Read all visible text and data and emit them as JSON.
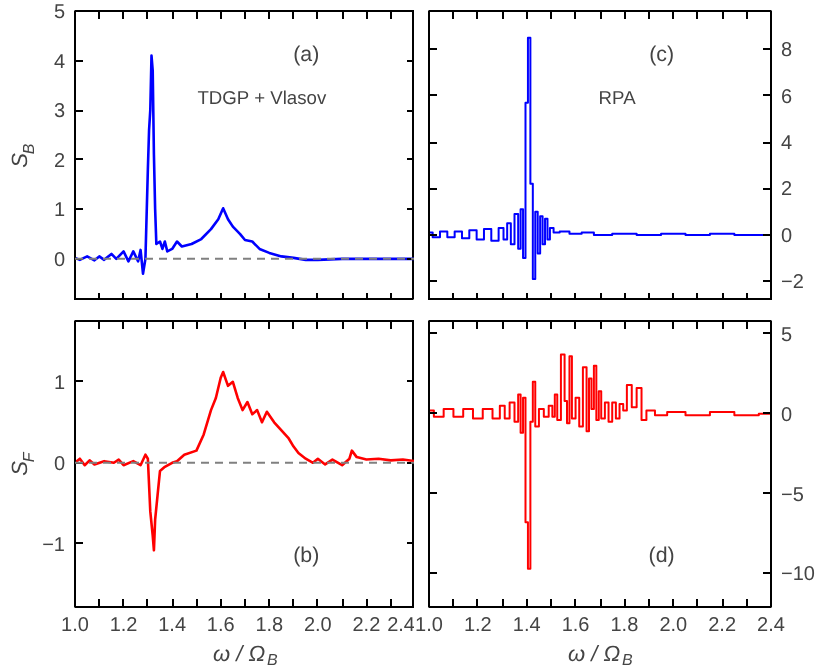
{
  "chart_data": [
    {
      "type": "line",
      "ylabel": "S$_{B}$",
      "annotations": [
        "(a)",
        "TDGP + Vlasov"
      ],
      "tick_labels": "y",
      "grid": false,
      "xlim": [
        1.0,
        2.4
      ],
      "ylim": [
        -0.85,
        5.0
      ],
      "xticks": [
        1.0,
        1.1,
        1.2,
        1.3,
        1.4,
        1.5,
        1.6,
        1.7,
        1.8,
        1.9,
        2.0,
        2.1,
        2.2,
        2.3,
        2.4
      ],
      "yticks": [
        0,
        1,
        2,
        3,
        4,
        5
      ],
      "ref_lines": [
        {
          "axis": "y",
          "value": 0,
          "color": "#808080",
          "line_style": "dashed"
        }
      ],
      "series": [
        {
          "color": "#0000ff",
          "x": [
            1.0,
            1.02,
            1.05,
            1.08,
            1.1,
            1.12,
            1.15,
            1.17,
            1.2,
            1.22,
            1.24,
            1.26,
            1.27,
            1.28,
            1.29,
            1.3,
            1.305,
            1.31,
            1.315,
            1.32,
            1.325,
            1.33,
            1.335,
            1.35,
            1.36,
            1.37,
            1.38,
            1.4,
            1.42,
            1.44,
            1.48,
            1.52,
            1.56,
            1.59,
            1.61,
            1.63,
            1.65,
            1.68,
            1.7,
            1.73,
            1.76,
            1.8,
            1.85,
            1.9,
            1.95,
            2.0,
            2.1,
            2.2,
            2.4
          ],
          "values": [
            0.02,
            -0.02,
            0.05,
            -0.03,
            0.05,
            -0.02,
            0.1,
            0.0,
            0.15,
            -0.05,
            0.15,
            -0.05,
            0.18,
            -0.3,
            0.0,
            1.8,
            2.6,
            3.0,
            4.1,
            3.8,
            2.1,
            1.0,
            0.3,
            0.35,
            0.2,
            0.35,
            0.15,
            0.2,
            0.35,
            0.25,
            0.3,
            0.4,
            0.6,
            0.8,
            1.02,
            0.8,
            0.65,
            0.5,
            0.38,
            0.35,
            0.2,
            0.12,
            0.05,
            0.02,
            -0.02,
            -0.02,
            0.0,
            0.0,
            0.0
          ]
        }
      ]
    },
    {
      "type": "line",
      "ylabel": "S$_{F}$",
      "xlabel": "ω / Ω$_{B}$",
      "annotations": [
        "(b)"
      ],
      "grid": false,
      "xlim": [
        1.0,
        2.4
      ],
      "ylim": [
        -1.78,
        1.75
      ],
      "xticks": [
        {
          "value": 1.0,
          "label": "1.0"
        },
        {
          "value": 1.1,
          "label": null
        },
        {
          "value": 1.2,
          "label": "1.2"
        },
        {
          "value": 1.3,
          "label": null
        },
        {
          "value": 1.4,
          "label": "1.4"
        },
        {
          "value": 1.5,
          "label": null
        },
        {
          "value": 1.6,
          "label": "1.6"
        },
        {
          "value": 1.7,
          "label": null
        },
        {
          "value": 1.8,
          "label": "1.8"
        },
        {
          "value": 1.9,
          "label": null
        },
        {
          "value": 2.0,
          "label": "2.0"
        },
        {
          "value": 2.1,
          "label": null
        },
        {
          "value": 2.2,
          "label": "2.2"
        },
        {
          "value": 2.3,
          "label": null
        },
        {
          "value": 2.4,
          "label": "2.4"
        }
      ],
      "yticks": [
        {
          "value": -1,
          "label": "−1"
        },
        0,
        1
      ],
      "ref_lines": [
        {
          "axis": "y",
          "value": 0,
          "color": "#808080",
          "line_style": "dashed"
        }
      ],
      "series": [
        {
          "color": "#ff0000",
          "x": [
            1.0,
            1.02,
            1.04,
            1.06,
            1.08,
            1.12,
            1.16,
            1.18,
            1.2,
            1.24,
            1.27,
            1.29,
            1.3,
            1.31,
            1.32,
            1.325,
            1.33,
            1.34,
            1.35,
            1.37,
            1.4,
            1.42,
            1.45,
            1.5,
            1.53,
            1.56,
            1.58,
            1.6,
            1.61,
            1.63,
            1.65,
            1.67,
            1.69,
            1.71,
            1.73,
            1.75,
            1.77,
            1.79,
            1.82,
            1.85,
            1.88,
            1.9,
            1.92,
            1.95,
            1.98,
            2.0,
            2.03,
            2.06,
            2.1,
            2.13,
            2.14,
            2.16,
            2.2,
            2.25,
            2.3,
            2.35,
            2.4
          ],
          "values": [
            0.0,
            0.05,
            -0.03,
            0.03,
            -0.02,
            0.02,
            0.0,
            0.04,
            -0.03,
            0.02,
            -0.03,
            0.1,
            0.05,
            -0.6,
            -0.9,
            -1.08,
            -0.7,
            -0.4,
            -0.1,
            -0.05,
            0.0,
            0.02,
            0.1,
            0.15,
            0.35,
            0.65,
            0.8,
            1.05,
            1.12,
            0.95,
            1.0,
            0.8,
            0.65,
            0.75,
            0.6,
            0.65,
            0.5,
            0.63,
            0.5,
            0.4,
            0.3,
            0.2,
            0.12,
            0.05,
            0.0,
            0.05,
            -0.02,
            0.04,
            -0.03,
            0.05,
            0.15,
            0.07,
            0.04,
            0.05,
            0.03,
            0.04,
            0.02
          ]
        }
      ]
    },
    {
      "type": "step",
      "annotations": [
        "(c)",
        "RPA"
      ],
      "tick_labels": "y",
      "grid": false,
      "xlim": [
        1.0,
        2.4
      ],
      "y2lim": [
        -2.85,
        9.65
      ],
      "xticks": [
        1.0,
        1.1,
        1.2,
        1.3,
        1.4,
        1.5,
        1.6,
        1.7,
        1.8,
        1.9,
        2.0,
        2.1,
        2.2,
        2.3,
        2.4
      ],
      "y2ticks": [
        {
          "value": -2,
          "label": "−2"
        },
        0,
        2,
        4,
        6,
        8
      ],
      "series": [
        {
          "color": "#0000ff",
          "axis": "y2",
          "x": [
            1.0,
            1.03,
            1.06,
            1.09,
            1.12,
            1.15,
            1.18,
            1.21,
            1.24,
            1.27,
            1.3,
            1.31,
            1.33,
            1.34,
            1.36,
            1.37,
            1.38,
            1.39,
            1.4,
            1.41,
            1.42,
            1.43,
            1.44,
            1.45,
            1.46,
            1.47,
            1.48,
            1.49,
            1.5,
            1.52,
            1.55,
            1.6,
            1.65,
            1.7,
            1.8,
            1.9,
            2.0,
            2.1,
            2.2,
            2.3,
            2.4
          ],
          "values": [
            0.1,
            -0.1,
            0.15,
            -0.1,
            0.15,
            -0.15,
            0.2,
            -0.2,
            0.25,
            -0.25,
            0.3,
            -0.2,
            0.5,
            -0.4,
            0.9,
            -0.6,
            1.1,
            -1.0,
            5.7,
            8.5,
            2.2,
            -1.9,
            1.0,
            -0.8,
            0.8,
            -0.4,
            0.7,
            -0.2,
            0.3,
            0.1,
            0.15,
            0.05,
            0.1,
            0.0,
            0.05,
            0.0,
            0.05,
            0.0,
            0.05,
            0.0,
            0.0
          ]
        }
      ]
    },
    {
      "type": "step",
      "xlabel": "ω / Ω$_{B}$",
      "annotations": [
        "(d)"
      ],
      "grid": false,
      "xlim": [
        1.0,
        2.4
      ],
      "y2lim": [
        -12.1,
        5.8
      ],
      "xticks": [
        {
          "value": 1.0,
          "label": "1.0"
        },
        {
          "value": 1.1,
          "label": null
        },
        {
          "value": 1.2,
          "label": "1.2"
        },
        {
          "value": 1.3,
          "label": null
        },
        {
          "value": 1.4,
          "label": "1.4"
        },
        {
          "value": 1.5,
          "label": null
        },
        {
          "value": 1.6,
          "label": "1.6"
        },
        {
          "value": 1.7,
          "label": null
        },
        {
          "value": 1.8,
          "label": "1.8"
        },
        {
          "value": 1.9,
          "label": null
        },
        {
          "value": 2.0,
          "label": "2.0"
        },
        {
          "value": 2.1,
          "label": null
        },
        {
          "value": 2.2,
          "label": "2.2"
        },
        {
          "value": 2.3,
          "label": null
        },
        {
          "value": 2.4,
          "label": "2.4"
        }
      ],
      "y2ticks": [
        {
          "value": -10,
          "label": "−10"
        },
        {
          "value": -5,
          "label": "−5"
        },
        0,
        5
      ],
      "series": [
        {
          "color": "#ff0000",
          "axis": "y2",
          "x": [
            1.0,
            1.04,
            1.08,
            1.12,
            1.16,
            1.2,
            1.24,
            1.28,
            1.3,
            1.32,
            1.34,
            1.36,
            1.37,
            1.38,
            1.39,
            1.4,
            1.41,
            1.42,
            1.43,
            1.44,
            1.46,
            1.48,
            1.5,
            1.51,
            1.52,
            1.53,
            1.55,
            1.56,
            1.57,
            1.58,
            1.59,
            1.61,
            1.62,
            1.64,
            1.65,
            1.66,
            1.67,
            1.68,
            1.69,
            1.7,
            1.71,
            1.73,
            1.74,
            1.76,
            1.77,
            1.79,
            1.8,
            1.82,
            1.84,
            1.86,
            1.88,
            1.9,
            1.95,
            2.0,
            2.1,
            2.2,
            2.3,
            2.4
          ],
          "values": [
            0.2,
            -0.2,
            0.3,
            -0.2,
            0.3,
            -0.3,
            0.3,
            -0.3,
            0.5,
            -0.3,
            0.7,
            -0.5,
            1.2,
            -1.2,
            1.0,
            -6.8,
            -9.7,
            -0.5,
            2.0,
            -0.8,
            0.3,
            -0.2,
            0.5,
            -0.2,
            1.2,
            -0.4,
            3.7,
            0.8,
            -0.6,
            3.6,
            -0.3,
            1.0,
            -0.8,
            2.9,
            -1.1,
            2.2,
            0.3,
            3.0,
            -0.4,
            1.4,
            -0.3,
            0.7,
            -0.5,
            0.7,
            -0.3,
            0.6,
            0.2,
            1.8,
            0.4,
            1.6,
            -0.4,
            0.2,
            -0.1,
            0.1,
            -0.1,
            0.1,
            -0.1,
            0.0
          ]
        }
      ]
    }
  ]
}
